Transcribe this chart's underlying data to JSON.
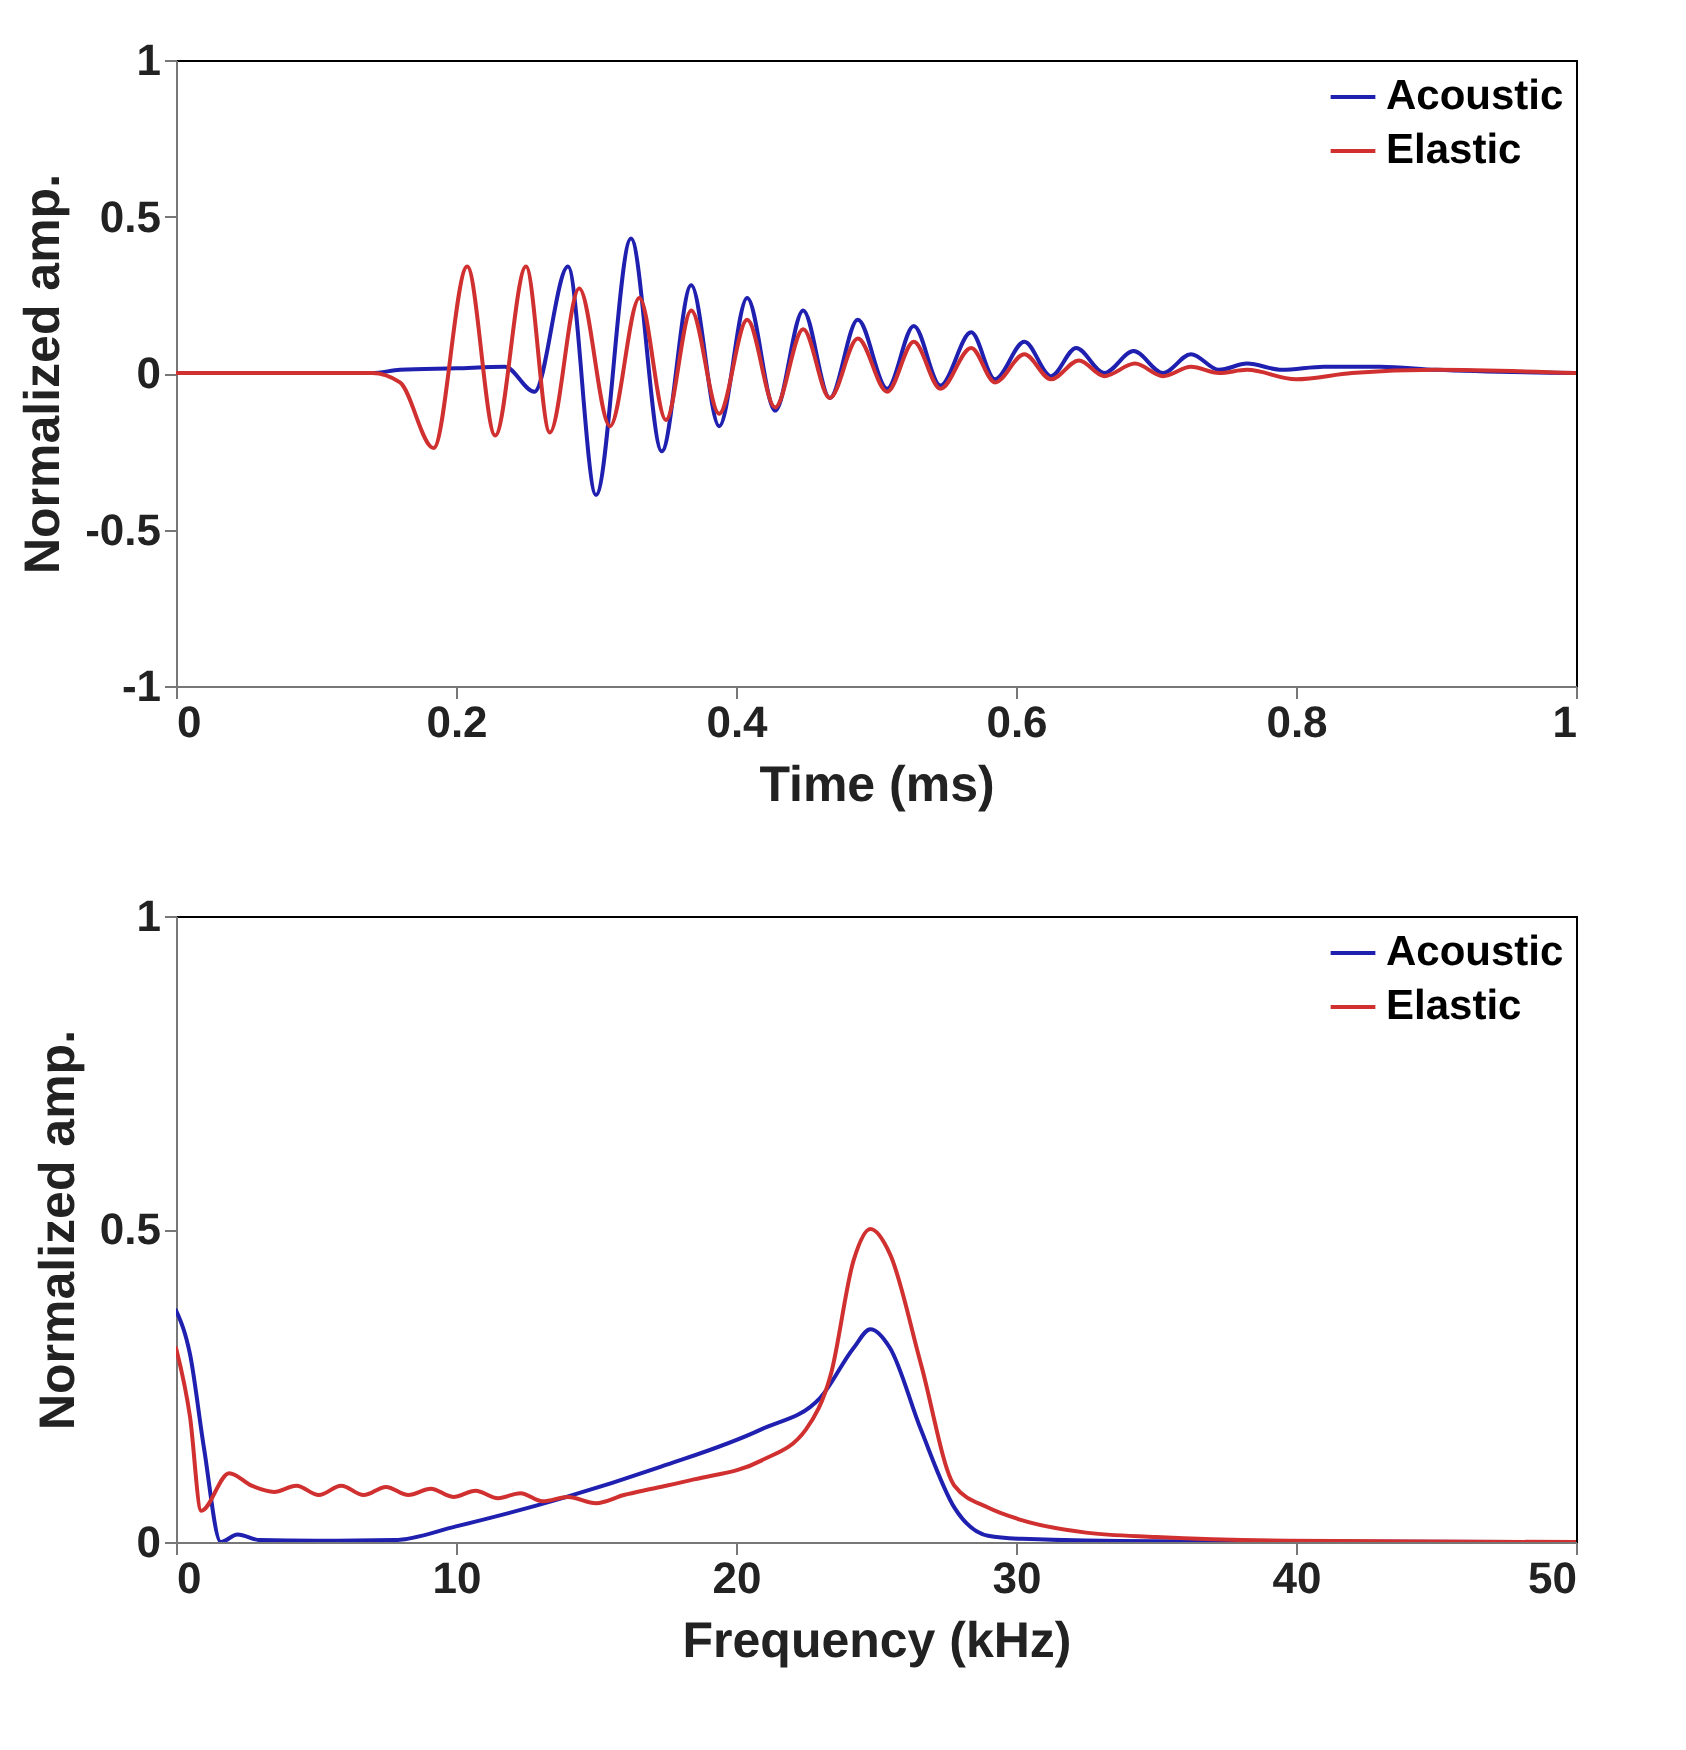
{
  "chart_data": [
    {
      "type": "line",
      "xlabel": "Time (ms)",
      "ylabel": "Normalized amp.",
      "xlim": [
        0,
        1
      ],
      "ylim": [
        -1,
        1
      ],
      "xticks": [
        0,
        0.2,
        0.4,
        0.6,
        0.8,
        1
      ],
      "yticks": [
        -1,
        -0.5,
        0,
        0.5,
        1
      ],
      "legend": "top right",
      "series": [
        {
          "name": "Acoustic",
          "color": "#2020b0",
          "x": [
            0,
            0.14,
            0.16,
            0.2,
            0.235,
            0.256,
            0.28,
            0.3,
            0.325,
            0.347,
            0.368,
            0.388,
            0.408,
            0.428,
            0.448,
            0.467,
            0.487,
            0.508,
            0.527,
            0.546,
            0.568,
            0.585,
            0.606,
            0.625,
            0.643,
            0.663,
            0.684,
            0.705,
            0.725,
            0.745,
            0.765,
            0.79,
            0.82,
            0.86,
            0.9,
            1
          ],
          "values": [
            0,
            0,
            0.01,
            0.015,
            0.02,
            -0.06,
            0.34,
            -0.39,
            0.43,
            -0.25,
            0.28,
            -0.17,
            0.24,
            -0.12,
            0.2,
            -0.08,
            0.17,
            -0.05,
            0.15,
            -0.04,
            0.13,
            -0.02,
            0.1,
            -0.01,
            0.08,
            0,
            0.07,
            0,
            0.06,
            0.01,
            0.03,
            0.01,
            0.02,
            0.02,
            0.01,
            0
          ]
        },
        {
          "name": "Elastic",
          "color": "#d03030",
          "x": [
            0,
            0.14,
            0.16,
            0.184,
            0.208,
            0.228,
            0.25,
            0.267,
            0.288,
            0.31,
            0.331,
            0.35,
            0.368,
            0.388,
            0.408,
            0.428,
            0.448,
            0.467,
            0.487,
            0.508,
            0.527,
            0.546,
            0.568,
            0.585,
            0.606,
            0.625,
            0.645,
            0.663,
            0.685,
            0.705,
            0.725,
            0.745,
            0.765,
            0.8,
            0.84,
            0.9,
            1
          ],
          "values": [
            0,
            0,
            -0.03,
            -0.24,
            0.34,
            -0.2,
            0.34,
            -0.19,
            0.27,
            -0.17,
            0.24,
            -0.15,
            0.2,
            -0.13,
            0.17,
            -0.11,
            0.14,
            -0.08,
            0.11,
            -0.06,
            0.1,
            -0.05,
            0.08,
            -0.03,
            0.06,
            -0.02,
            0.04,
            -0.01,
            0.03,
            -0.01,
            0.02,
            0,
            0.01,
            -0.02,
            0,
            0.01,
            0
          ]
        }
      ]
    },
    {
      "type": "line",
      "xlabel": "Frequency (kHz)",
      "ylabel": "Normalized amp.",
      "xlim": [
        0,
        50
      ],
      "ylim": [
        0,
        1
      ],
      "xticks": [
        0,
        10,
        20,
        30,
        40,
        50
      ],
      "yticks": [
        0,
        0.5,
        1
      ],
      "legend": "top right",
      "series": [
        {
          "name": "Acoustic",
          "color": "#2020b0",
          "x": [
            0,
            0.5,
            1,
            1.6,
            2.2,
            3,
            5,
            7.8,
            10,
            13.8,
            17.3,
            20.9,
            23,
            24.2,
            24.8,
            25.5,
            26.6,
            27.8,
            29,
            30.2,
            35,
            50
          ],
          "values": [
            0.37,
            0.3,
            0.15,
            0,
            0.012,
            0.003,
            0.002,
            0.003,
            0.025,
            0.07,
            0.12,
            0.18,
            0.23,
            0.31,
            0.34,
            0.31,
            0.18,
            0.055,
            0.01,
            0.005,
            0.001,
            0
          ]
        },
        {
          "name": "Elastic",
          "color": "#d03030",
          "x": [
            0,
            0.5,
            0.9,
            1.9,
            2.7,
            3.5,
            4.3,
            5.1,
            5.9,
            6.7,
            7.5,
            8.3,
            9.1,
            9.9,
            10.7,
            11.5,
            12.3,
            13.1,
            14,
            15,
            16,
            17,
            18.5,
            20.9,
            22.5,
            23.4,
            24.2,
            24.8,
            25.5,
            26.6,
            27.8,
            29,
            30.2,
            32.5,
            35,
            39.7,
            50
          ],
          "values": [
            0.31,
            0.2,
            0.05,
            0.11,
            0.09,
            0.08,
            0.09,
            0.075,
            0.09,
            0.075,
            0.088,
            0.075,
            0.085,
            0.072,
            0.082,
            0.07,
            0.078,
            0.065,
            0.072,
            0.062,
            0.075,
            0.085,
            0.1,
            0.13,
            0.18,
            0.27,
            0.45,
            0.5,
            0.46,
            0.285,
            0.09,
            0.055,
            0.035,
            0.015,
            0.008,
            0.002,
            0
          ]
        }
      ]
    }
  ]
}
